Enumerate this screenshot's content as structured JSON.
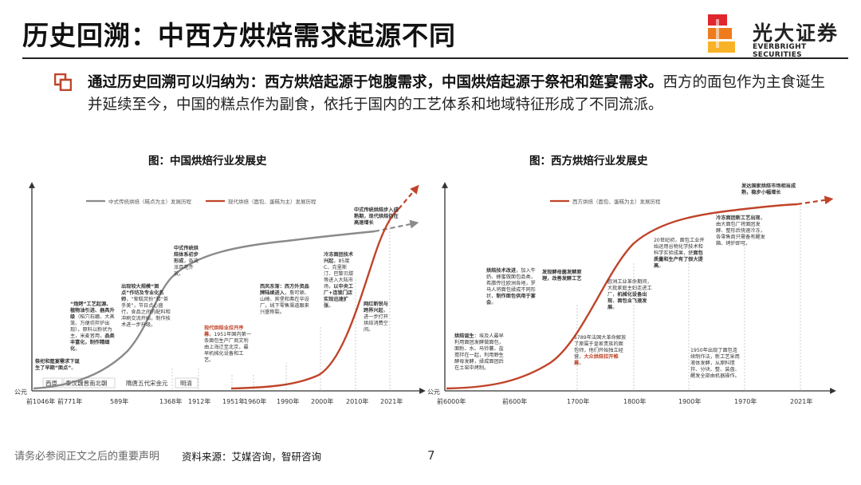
{
  "header": {
    "title": "历史回溯：中西方烘焙需求起源不同"
  },
  "logo": {
    "cn": "光大证券",
    "en": "EVERBRIGHT SECURITIES",
    "colors": [
      "#e0272d",
      "#ee7b1d",
      "#f8b227"
    ]
  },
  "summary": {
    "bold": "通过历史回溯可以归纳为：西方烘焙起源于饱腹需求，中国烘焙起源于祭祀和筵宴需求。",
    "rest": "西方的面包作为主食诞生并延续至今，中国的糕点作为副食，依托于国内的工艺体系和地域特征形成了不同流派。"
  },
  "colors": {
    "accent": "#c0442a",
    "gray_series": "#8a8a8a",
    "axis": "#333333"
  },
  "chart_data": [
    {
      "type": "line",
      "title": "图：中国烘焙行业发展史",
      "series": [
        {
          "name": "中式传统烘焙（糕点为主）发展历程"
        },
        {
          "name": "现代烘焙（面包、蛋糕为主）发展历程"
        }
      ],
      "origin_label": "公元",
      "ticks": [
        "前1046年",
        "前771年",
        "589年",
        "1368年",
        "1912年",
        "1951年",
        "1960年",
        "1990年",
        "2000年",
        "2010年",
        "2021年"
      ],
      "eras": [
        "西周",
        "秦汉魏晋南北朝",
        "隋唐五代宋金元",
        "明清"
      ],
      "annotations": [
        {
          "bold": "祭祀和筵宴需求下诞生了早期“面点”",
          "text": "。"
        },
        {
          "bold": "“炮烤”工艺起源、植物油引进、器具升级",
          "text": "（稻穴石磨、大蒸笼、万便坊拌炉出现），原料以粉状为主，米麦皆用，",
          "bold2": "品类丰富化，制作精细化",
          "text2": "。"
        },
        {
          "bold": "出现较大规模“面点”作坊及专业化名师",
          "text": "，“荤糕荧扮”和“茶手美”，节日点心盛行，食品之间的配料和冲刷交流开始，制作技术进一步升级。"
        },
        {
          "bold": "中式传统烘焙体系初步形成",
          "text": "，各流派百花齐放。"
        },
        {
          "bold": "现代烘焙业拉开序幕",
          "text": "。1951年国内第一条面包生产厂商文利由上海迁至北京，最早机械化设备和工艺。"
        },
        {
          "bold": "西风东渐：西方外资品牌陆续进入",
          "text": "，詹可顿、山崎、宾堡和弗在华设厂，线下零售渠道跟来兴盛称裂。"
        },
        {
          "bold": "冷冻面团技术兴起",
          "text": "，85度C、克里斯汀、巴黎贝甜等进入大陆市场，",
          "bold2": "以中央工厂+连锁门店实现迅速扩张",
          "text2": "。"
        },
        {
          "bold": "中式传统烘焙步入成熟期，现代烘焙仍在高速增长",
          "text": ""
        },
        {
          "bold": "网红新锐与跨界兴起",
          "text": "，进一步打开烘焙消费空间。"
        }
      ]
    },
    {
      "type": "line",
      "title": "图：西方烘焙行业发展史",
      "series": [
        {
          "name": "西方烘焙（面包、蛋糕为主）发展历程"
        }
      ],
      "origin_label": "公元",
      "ticks": [
        "前6000年",
        "前600年",
        "1700年",
        "1800年",
        "1900年",
        "1970年",
        "2021年"
      ],
      "annotations": [
        {
          "bold": "烘焙诞生",
          "text": "：埃及人最早利用面团发酵做面包，面粉、水、马铃薯、盐搅拌在一起，利用野生酵母发酵，揉成面团后在土窑中烤制。"
        },
        {
          "bold": "烘焙技术改进",
          "text": "，加入牛奶、蜂蜜做面包品类，希腊传往欧洲各地，罗马人将面包揉成不同形状，",
          "bold2": "制作面包供用于宴会",
          "text2": "。"
        },
        {
          "bold": "发现酵母菌发酵原理，改善发酵工艺",
          "text": ""
        },
        {
          "bold": "",
          "text": "1789年法国大革命解放了原属于皇家贵族的面包师，他们开始独立经营，",
          "bold2": "大众烘焙拉开帷幕",
          "text2": "。"
        },
        {
          "bold": "",
          "text": "欧洲工业革命期间，大批家庭主妇走进工厂，",
          "bold2": "机械化设备出现",
          "text2": "，",
          "bold3": "面包业飞速发展",
          "text3": "。"
        },
        {
          "bold": "",
          "text": "20世纪初，面包工业开始运用谷物化学技术和科学实验成果，使",
          "bold2": "面包质量和生产有了很大提高",
          "text2": "。"
        },
        {
          "bold": "冷冻面团新工艺出现",
          "text": "，由大面包厂将面团发酵、整形后快速冷冻，各零售商只需备有醒发箱、烤炉即可。"
        },
        {
          "bold": "",
          "text": "1950年出现了面包连续制作法，新工艺采用液体发酵，从原料搅拌、分块、整、装盘、醒发全部由机器操作。"
        },
        {
          "bold": "发达国家烘焙市场相当成熟，稳步小幅增长",
          "text": ""
        }
      ]
    }
  ],
  "footer": {
    "disclaimer": "请务必参阅正文之后的重要声明",
    "source": "资料来源：艾媒咨询，智研咨询",
    "page": "7"
  }
}
